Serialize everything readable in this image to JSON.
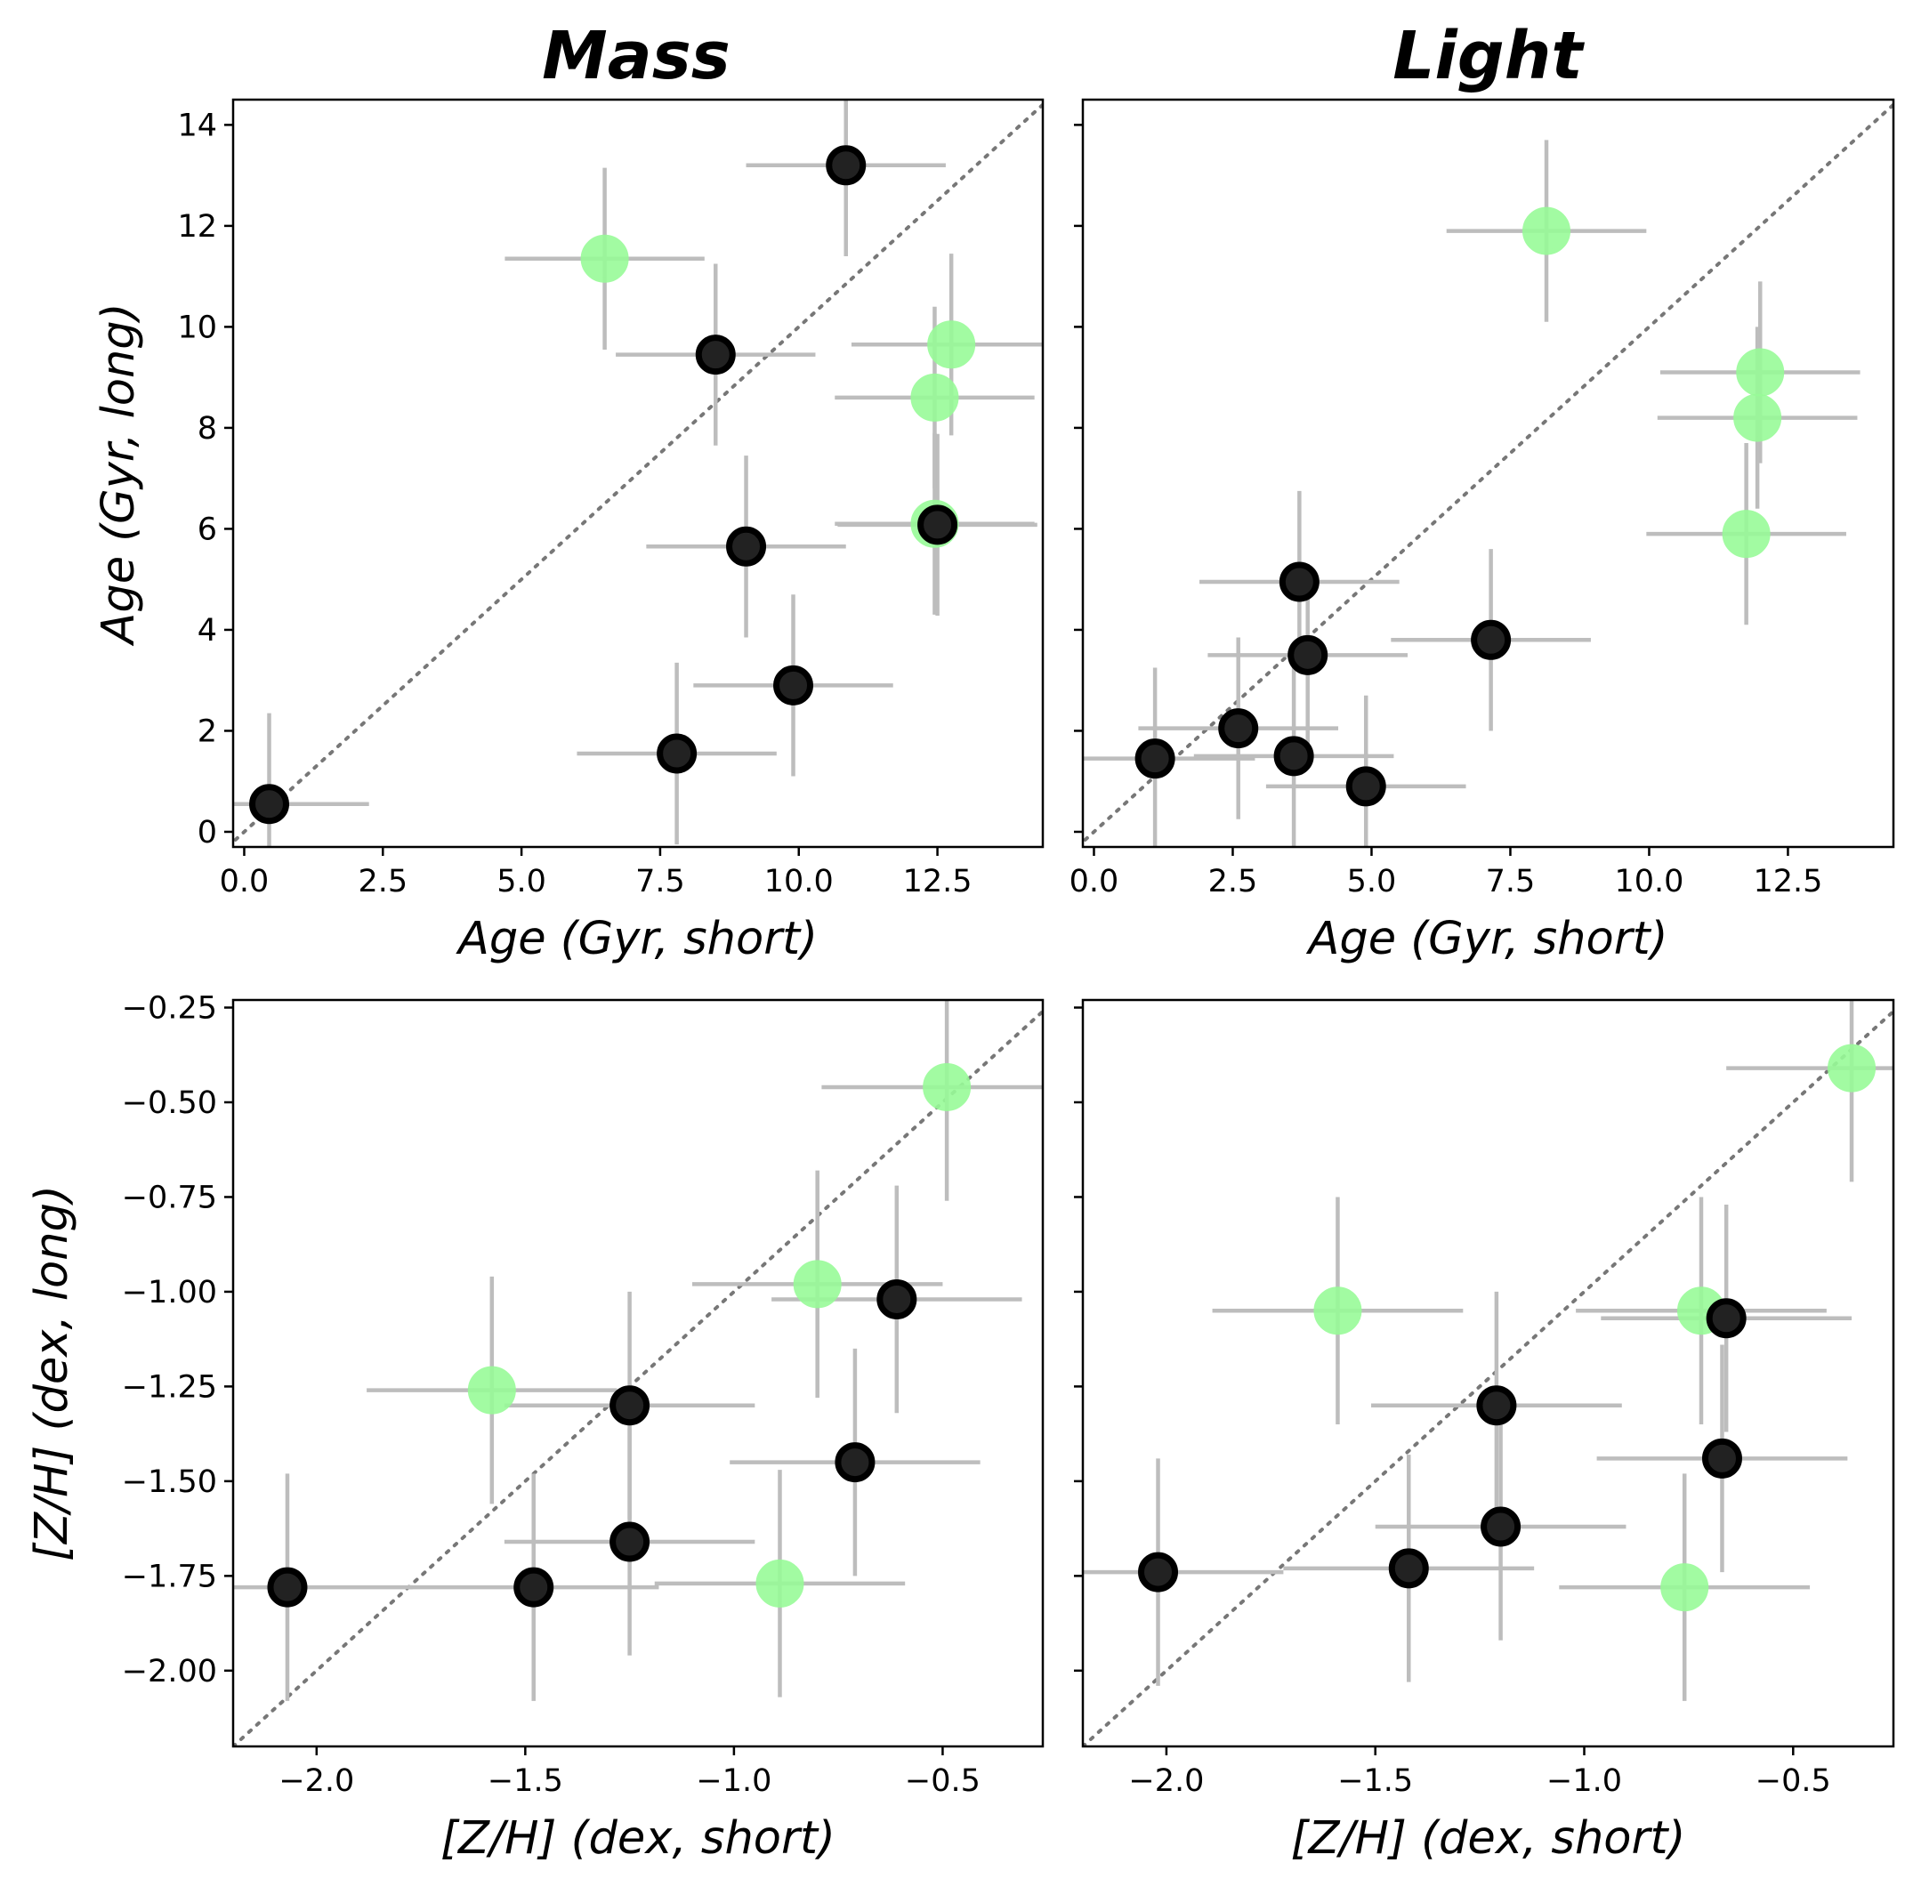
{
  "colors": {
    "highlight": "#98FB98",
    "normal": "#222222",
    "errorbar": "#bdbdbd",
    "diagonal": "#777777"
  },
  "column_titles": [
    "Mass",
    "Light"
  ],
  "chart_data": [
    {
      "type": "scatter",
      "panel": "top-left",
      "column_title": "Mass",
      "xlabel": "Age (Gyr, short)",
      "ylabel": "Age (Gyr, long)",
      "xlim": [
        -0.2,
        14.4
      ],
      "ylim": [
        -0.3,
        14.5
      ],
      "xticks": [
        0.0,
        2.5,
        5.0,
        7.5,
        10.0,
        12.5
      ],
      "xtick_labels": [
        "0.0",
        "2.5",
        "5.0",
        "7.5",
        "10.0",
        "12.5"
      ],
      "yticks": [
        0,
        2,
        4,
        6,
        8,
        10,
        12,
        14
      ],
      "ytick_labels": [
        "0",
        "2",
        "4",
        "6",
        "8",
        "10",
        "12",
        "14"
      ],
      "diagonal": true,
      "points": [
        {
          "x": 0.45,
          "y": 0.55,
          "xerr": 1.8,
          "yerr": 1.8,
          "group": "black"
        },
        {
          "x": 7.8,
          "y": 1.55,
          "xerr": 1.8,
          "yerr": 1.8,
          "group": "black"
        },
        {
          "x": 9.9,
          "y": 2.9,
          "xerr": 1.8,
          "yerr": 1.8,
          "group": "black"
        },
        {
          "x": 9.05,
          "y": 5.65,
          "xerr": 1.8,
          "yerr": 1.8,
          "group": "black"
        },
        {
          "x": 8.5,
          "y": 9.45,
          "xerr": 1.8,
          "yerr": 1.8,
          "group": "black"
        },
        {
          "x": 10.85,
          "y": 13.2,
          "xerr": 1.8,
          "yerr": 1.8,
          "group": "black"
        },
        {
          "x": 12.45,
          "y": 6.1,
          "xerr": 1.8,
          "yerr": 1.8,
          "group": "green"
        },
        {
          "x": 12.5,
          "y": 6.08,
          "xerr": 1.8,
          "yerr": 1.8,
          "group": "black"
        },
        {
          "x": 6.5,
          "y": 11.35,
          "xerr": 1.8,
          "yerr": 1.8,
          "group": "green"
        },
        {
          "x": 12.75,
          "y": 9.65,
          "xerr": 1.8,
          "yerr": 1.8,
          "group": "green"
        },
        {
          "x": 12.45,
          "y": 8.6,
          "xerr": 1.8,
          "yerr": 1.8,
          "group": "green"
        }
      ]
    },
    {
      "type": "scatter",
      "panel": "top-right",
      "column_title": "Light",
      "xlabel": "Age (Gyr, short)",
      "ylabel": "",
      "xlim": [
        -0.2,
        14.4
      ],
      "ylim": [
        -0.3,
        14.5
      ],
      "xticks": [
        0.0,
        2.5,
        5.0,
        7.5,
        10.0,
        12.5
      ],
      "xtick_labels": [
        "0.0",
        "2.5",
        "5.0",
        "7.5",
        "10.0",
        "12.5"
      ],
      "yticks": [
        0,
        2,
        4,
        6,
        8,
        10,
        12,
        14
      ],
      "ytick_labels": [],
      "diagonal": true,
      "points": [
        {
          "x": 1.1,
          "y": 1.45,
          "xerr": 1.8,
          "yerr": 1.8,
          "group": "black"
        },
        {
          "x": 2.6,
          "y": 2.05,
          "xerr": 1.8,
          "yerr": 1.8,
          "group": "black"
        },
        {
          "x": 3.6,
          "y": 1.5,
          "xerr": 1.8,
          "yerr": 1.8,
          "group": "black"
        },
        {
          "x": 4.9,
          "y": 0.9,
          "xerr": 1.8,
          "yerr": 1.8,
          "group": "black"
        },
        {
          "x": 3.85,
          "y": 3.5,
          "xerr": 1.8,
          "yerr": 1.8,
          "group": "black"
        },
        {
          "x": 3.7,
          "y": 4.95,
          "xerr": 1.8,
          "yerr": 1.8,
          "group": "black"
        },
        {
          "x": 7.15,
          "y": 3.8,
          "xerr": 1.8,
          "yerr": 1.8,
          "group": "black"
        },
        {
          "x": 8.15,
          "y": 11.9,
          "xerr": 1.8,
          "yerr": 1.8,
          "group": "green"
        },
        {
          "x": 12.0,
          "y": 9.1,
          "xerr": 1.8,
          "yerr": 1.8,
          "group": "green"
        },
        {
          "x": 11.95,
          "y": 8.2,
          "xerr": 1.8,
          "yerr": 1.8,
          "group": "green"
        },
        {
          "x": 11.75,
          "y": 5.9,
          "xerr": 1.8,
          "yerr": 1.8,
          "group": "green"
        }
      ]
    },
    {
      "type": "scatter",
      "panel": "bottom-left",
      "column_title": "Mass",
      "xlabel": "[Z/H] (dex, short)",
      "ylabel": "[Z/H] (dex, long)",
      "xlim": [
        -2.2,
        -0.26
      ],
      "ylim": [
        -2.2,
        -0.23
      ],
      "xticks": [
        -2.0,
        -1.5,
        -1.0,
        -0.5
      ],
      "xtick_labels": [
        "−2.0",
        "−1.5",
        "−1.0",
        "−0.5"
      ],
      "yticks": [
        -2.0,
        -1.75,
        -1.5,
        -1.25,
        -1.0,
        -0.75,
        -0.5,
        -0.25
      ],
      "ytick_labels": [
        "−2.00",
        "−1.75",
        "−1.50",
        "−1.25",
        "−1.00",
        "−0.75",
        "−0.50",
        "−0.25"
      ],
      "diagonal": true,
      "points": [
        {
          "x": -2.07,
          "y": -1.78,
          "xerr": 0.3,
          "yerr": 0.3,
          "group": "black"
        },
        {
          "x": -1.48,
          "y": -1.78,
          "xerr": 0.3,
          "yerr": 0.3,
          "group": "black"
        },
        {
          "x": -1.25,
          "y": -1.66,
          "xerr": 0.3,
          "yerr": 0.3,
          "group": "black"
        },
        {
          "x": -1.25,
          "y": -1.3,
          "xerr": 0.3,
          "yerr": 0.3,
          "group": "black"
        },
        {
          "x": -0.71,
          "y": -1.45,
          "xerr": 0.3,
          "yerr": 0.3,
          "group": "black"
        },
        {
          "x": -0.61,
          "y": -1.02,
          "xerr": 0.3,
          "yerr": 0.3,
          "group": "black"
        },
        {
          "x": -1.58,
          "y": -1.26,
          "xerr": 0.3,
          "yerr": 0.3,
          "group": "green"
        },
        {
          "x": -0.89,
          "y": -1.77,
          "xerr": 0.3,
          "yerr": 0.3,
          "group": "green"
        },
        {
          "x": -0.8,
          "y": -0.98,
          "xerr": 0.3,
          "yerr": 0.3,
          "group": "green"
        },
        {
          "x": -0.49,
          "y": -0.46,
          "xerr": 0.3,
          "yerr": 0.3,
          "group": "green"
        }
      ]
    },
    {
      "type": "scatter",
      "panel": "bottom-right",
      "column_title": "Light",
      "xlabel": "[Z/H] (dex, short)",
      "ylabel": "",
      "xlim": [
        -2.2,
        -0.26
      ],
      "ylim": [
        -2.2,
        -0.23
      ],
      "xticks": [
        -2.0,
        -1.5,
        -1.0,
        -0.5
      ],
      "xtick_labels": [
        "−2.0",
        "−1.5",
        "−1.0",
        "−0.5"
      ],
      "yticks": [
        -2.0,
        -1.75,
        -1.5,
        -1.25,
        -1.0,
        -0.75,
        -0.5,
        -0.25
      ],
      "ytick_labels": [],
      "diagonal": true,
      "points": [
        {
          "x": -2.02,
          "y": -1.74,
          "xerr": 0.3,
          "yerr": 0.3,
          "group": "black"
        },
        {
          "x": -1.42,
          "y": -1.73,
          "xerr": 0.3,
          "yerr": 0.3,
          "group": "black"
        },
        {
          "x": -1.2,
          "y": -1.62,
          "xerr": 0.3,
          "yerr": 0.3,
          "group": "black"
        },
        {
          "x": -1.21,
          "y": -1.3,
          "xerr": 0.3,
          "yerr": 0.3,
          "group": "black"
        },
        {
          "x": -0.67,
          "y": -1.44,
          "xerr": 0.3,
          "yerr": 0.3,
          "group": "black"
        },
        {
          "x": -0.66,
          "y": -1.07,
          "xerr": 0.3,
          "yerr": 0.3,
          "group": "black"
        },
        {
          "x": -1.59,
          "y": -1.05,
          "xerr": 0.3,
          "yerr": 0.3,
          "group": "green"
        },
        {
          "x": -0.72,
          "y": -1.05,
          "xerr": 0.3,
          "yerr": 0.3,
          "group": "green"
        },
        {
          "x": -0.76,
          "y": -1.78,
          "xerr": 0.3,
          "yerr": 0.3,
          "group": "green"
        },
        {
          "x": -0.36,
          "y": -0.41,
          "xerr": 0.3,
          "yerr": 0.3,
          "group": "green"
        }
      ]
    }
  ]
}
